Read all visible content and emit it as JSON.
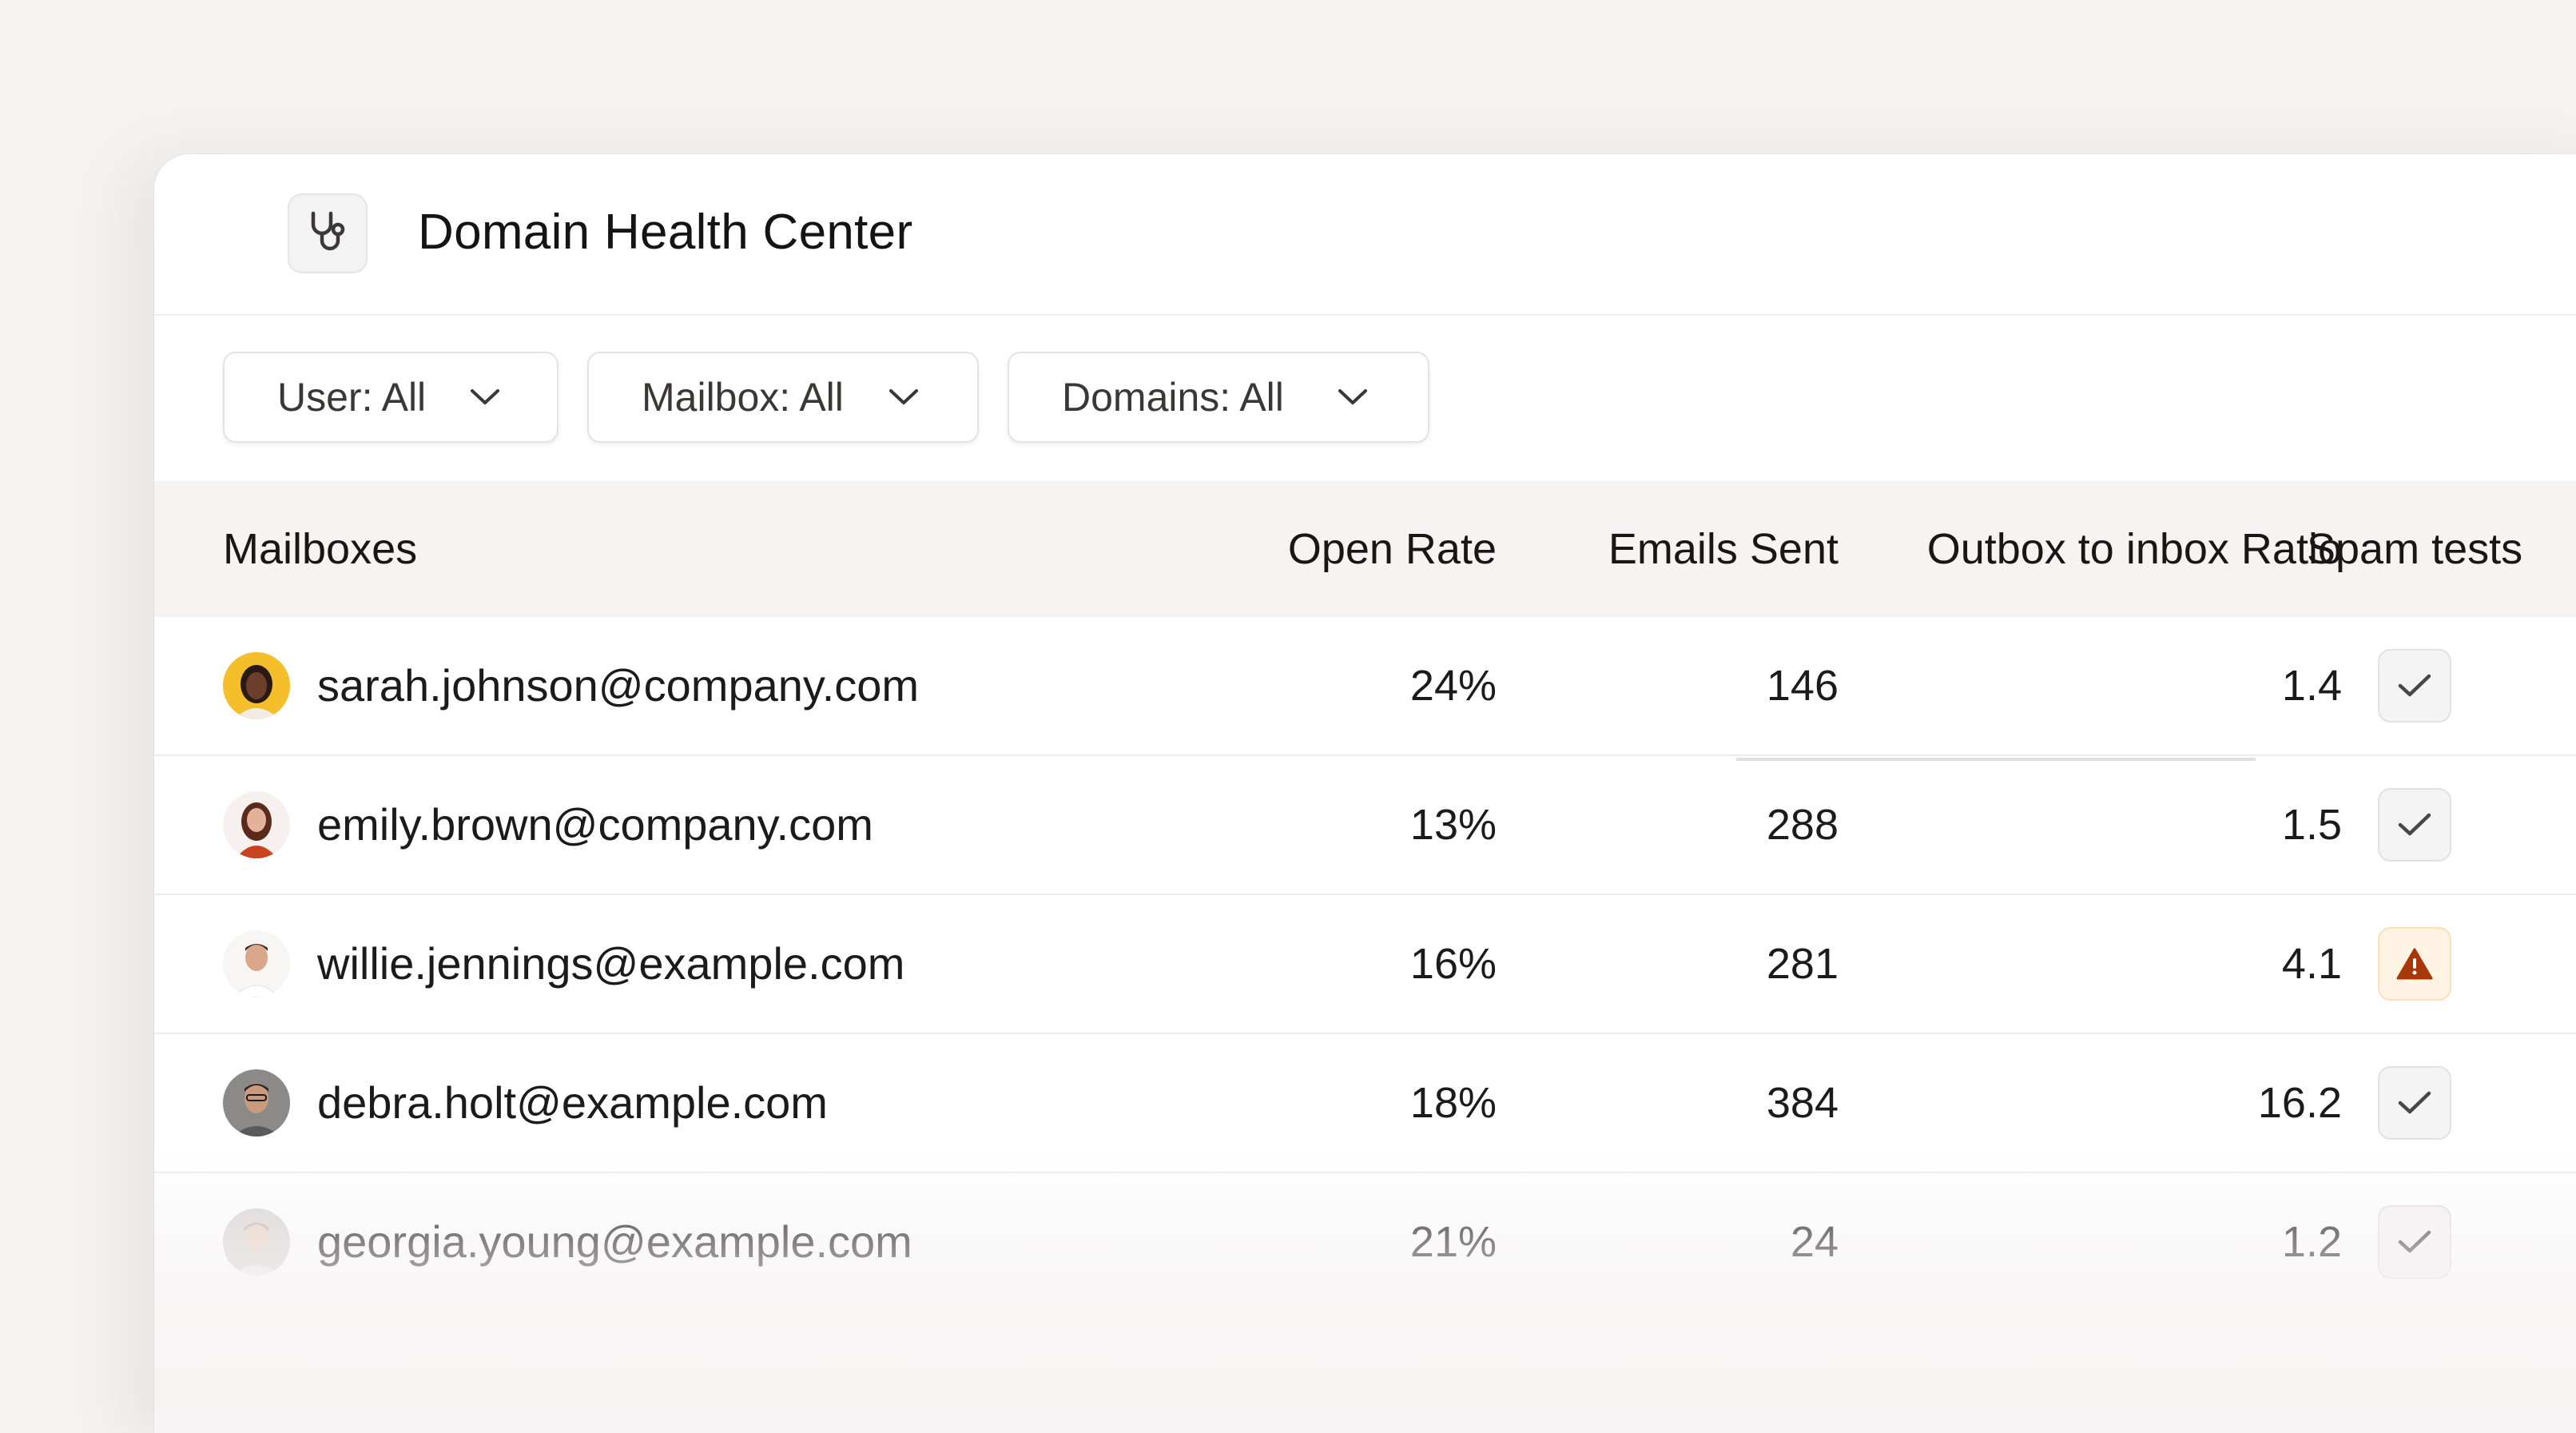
{
  "app": {
    "title": "Domain Health Center",
    "icon": "stethoscope-icon"
  },
  "filters": [
    {
      "label": "User: All",
      "icon": "chevron-down-icon"
    },
    {
      "label": "Mailbox: All",
      "icon": "chevron-down-icon"
    },
    {
      "label": "Domains: All",
      "icon": "chevron-down-icon"
    }
  ],
  "table": {
    "columns": [
      "Mailboxes",
      "Open Rate",
      "Emails Sent",
      "Outbox to inbox Ratio",
      "Spam tests"
    ],
    "rows": [
      {
        "email": "sarah.johnson@company.com",
        "open_rate": "24%",
        "emails_sent": "146",
        "ratio": "1.4",
        "spam": "check-icon"
      },
      {
        "email": "emily.brown@company.com",
        "open_rate": "13%",
        "emails_sent": "288",
        "ratio": "1.5",
        "spam": "check-icon"
      },
      {
        "email": "willie.jennings@example.com",
        "open_rate": "16%",
        "emails_sent": "281",
        "ratio": "4.1",
        "spam": "warning-icon"
      },
      {
        "email": "debra.holt@example.com",
        "open_rate": "18%",
        "emails_sent": "384",
        "ratio": "16.2",
        "spam": "check-icon"
      },
      {
        "email": "georgia.young@example.com",
        "open_rate": "21%",
        "emails_sent": "24",
        "ratio": "1.2",
        "spam": "check-icon"
      }
    ]
  },
  "colors": {
    "background": "#f5f2f2",
    "warning": "#a8380a",
    "warning_bg": "#fff3e3"
  }
}
